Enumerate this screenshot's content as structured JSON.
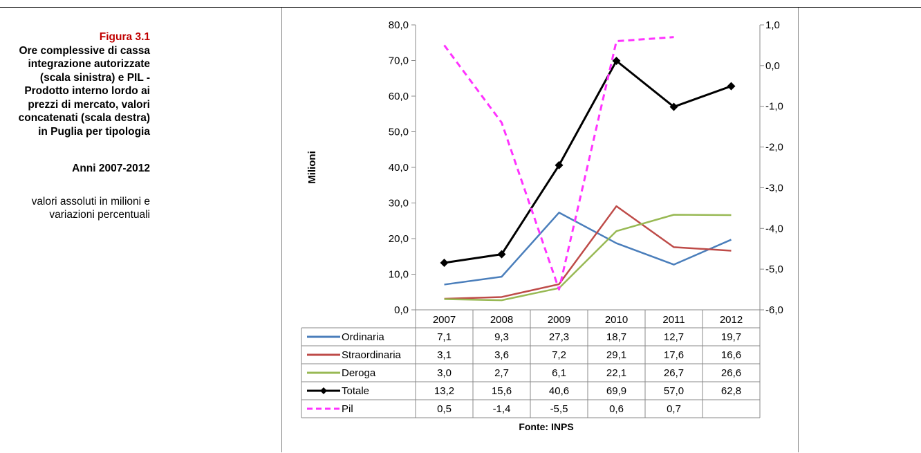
{
  "caption": {
    "figure_label": "Figura 3.1",
    "title": "Ore complessive di cassa integrazione autorizzate (scala sinistra) e PIL - Prodotto interno lordo ai prezzi di mercato, valori concatenati (scala destra) in Puglia per tipologia",
    "period": "Anni 2007-2012",
    "description": "valori assoluti in milioni e variazioni percentuali"
  },
  "chart_data": {
    "type": "line",
    "categories": [
      "2007",
      "2008",
      "2009",
      "2010",
      "2011",
      "2012"
    ],
    "ylabel": "Milioni",
    "ylim": [
      0,
      80
    ],
    "y_ticks": [
      0,
      10,
      20,
      30,
      40,
      50,
      60,
      70,
      80
    ],
    "y_tick_labels": [
      "0,0",
      "10,0",
      "20,0",
      "30,0",
      "40,0",
      "50,0",
      "60,0",
      "70,0",
      "80,0"
    ],
    "y2lim": [
      -6,
      1
    ],
    "y2_ticks": [
      -6,
      -5,
      -4,
      -3,
      -2,
      -1,
      0,
      1
    ],
    "y2_tick_labels": [
      "-6,0",
      "-5,0",
      "-4,0",
      "-3,0",
      "-2,0",
      "-1,0",
      "0,0",
      "1,0"
    ],
    "source": "Fonte: INPS",
    "grid": false,
    "legend": "data-table",
    "series": [
      {
        "name": "Ordinaria",
        "axis": "left",
        "color": "#4a7ebb",
        "style": "solid",
        "marker": "none",
        "values": [
          7.1,
          9.3,
          27.3,
          18.7,
          12.7,
          19.7
        ],
        "labels": [
          "7,1",
          "9,3",
          "27,3",
          "18,7",
          "12,7",
          "19,7"
        ]
      },
      {
        "name": "Straordinaria",
        "axis": "left",
        "color": "#be4b48",
        "style": "solid",
        "marker": "none",
        "values": [
          3.1,
          3.6,
          7.2,
          29.1,
          17.6,
          16.6
        ],
        "labels": [
          "3,1",
          "3,6",
          "7,2",
          "29,1",
          "17,6",
          "16,6"
        ]
      },
      {
        "name": "Deroga",
        "axis": "left",
        "color": "#98b954",
        "style": "solid",
        "marker": "none",
        "values": [
          3.0,
          2.7,
          6.1,
          22.1,
          26.7,
          26.6
        ],
        "labels": [
          "3,0",
          "2,7",
          "6,1",
          "22,1",
          "26,7",
          "26,6"
        ]
      },
      {
        "name": "Totale",
        "axis": "left",
        "color": "#000000",
        "style": "solid",
        "marker": "diamond",
        "values": [
          13.2,
          15.6,
          40.6,
          69.9,
          57.0,
          62.8
        ],
        "labels": [
          "13,2",
          "15,6",
          "40,6",
          "69,9",
          "57,0",
          "62,8"
        ]
      },
      {
        "name": "Pil",
        "axis": "right",
        "color": "#ff33ff",
        "style": "dashed",
        "marker": "none",
        "values": [
          0.5,
          -1.4,
          -5.5,
          0.6,
          0.7,
          null
        ],
        "labels": [
          "0,5",
          "-1,4",
          "-5,5",
          "0,6",
          "0,7",
          ""
        ]
      }
    ]
  }
}
